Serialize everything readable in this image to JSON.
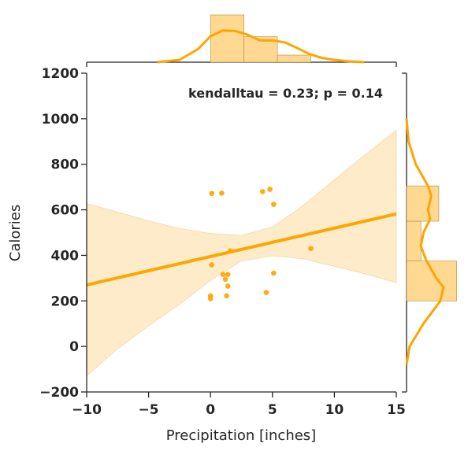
{
  "chart_data": {
    "type": "scatter",
    "xlabel": "Precipitation [inches]",
    "ylabel": "Calories",
    "xlim": [
      -10,
      15
    ],
    "ylim": [
      -200,
      1200
    ],
    "xticks": [
      -10,
      -5,
      0,
      5,
      10,
      15
    ],
    "yticks": [
      -200,
      0,
      200,
      400,
      600,
      800,
      1000,
      1200
    ],
    "xtick_labels": [
      "−10",
      "−5",
      "0",
      "5",
      "10",
      "15"
    ],
    "ytick_labels": [
      "−200",
      "0",
      "200",
      "400",
      "600",
      "800",
      "1000",
      "1200"
    ],
    "annotation": "kendalltau = 0.23; p = 0.14",
    "grid": false,
    "color": "#ffa500",
    "band_color": "#fdebc9",
    "hist_color": "#ffd892",
    "points": [
      {
        "x": 0.1,
        "y": 672
      },
      {
        "x": 0.9,
        "y": 673
      },
      {
        "x": 4.2,
        "y": 680
      },
      {
        "x": 4.8,
        "y": 690
      },
      {
        "x": 5.1,
        "y": 624
      },
      {
        "x": 1.6,
        "y": 420
      },
      {
        "x": 8.1,
        "y": 430
      },
      {
        "x": 0.1,
        "y": 358
      },
      {
        "x": 1.0,
        "y": 316
      },
      {
        "x": 1.4,
        "y": 316
      },
      {
        "x": 1.2,
        "y": 295
      },
      {
        "x": 1.4,
        "y": 265
      },
      {
        "x": 5.1,
        "y": 322
      },
      {
        "x": 4.5,
        "y": 237
      },
      {
        "x": 0.0,
        "y": 222
      },
      {
        "x": 0.0,
        "y": 210
      },
      {
        "x": 1.3,
        "y": 222
      }
    ],
    "regression": {
      "x": [
        -10,
        15
      ],
      "y": [
        270,
        582
      ]
    },
    "confidence_band": {
      "x": [
        -10,
        -7.5,
        -5,
        -2.5,
        0,
        2.5,
        5,
        7.5,
        10,
        12.5,
        15
      ],
      "upper": [
        628,
        590,
        552,
        518,
        496,
        488,
        525,
        620,
        732,
        843,
        950
      ],
      "lower": [
        -130,
        -10,
        90,
        185,
        290,
        375,
        398,
        385,
        352,
        318,
        280
      ]
    },
    "marginal_x": {
      "bins": [
        [
          0,
          2.7
        ],
        [
          2.7,
          5.4
        ],
        [
          5.4,
          8.1
        ]
      ],
      "heights": [
        1.0,
        0.54,
        0.15
      ],
      "kde_x": [
        -4.3,
        -2.5,
        -1,
        0,
        1,
        2,
        3,
        4,
        5,
        6,
        7,
        8,
        9,
        10,
        11,
        12.4
      ],
      "kde_y": [
        0.0,
        0.05,
        0.28,
        0.55,
        0.67,
        0.66,
        0.58,
        0.46,
        0.46,
        0.42,
        0.3,
        0.17,
        0.09,
        0.05,
        0.02,
        0.0
      ]
    },
    "marginal_y": {
      "bins": [
        [
          200,
          375
        ],
        [
          375,
          550
        ],
        [
          550,
          705
        ]
      ],
      "widths": [
        0.98,
        0.28,
        0.63
      ],
      "kde_y": [
        -80,
        0,
        100,
        200,
        260,
        300,
        380,
        440,
        500,
        560,
        600,
        660,
        700,
        800,
        900,
        1000
      ],
      "kde_x": [
        0.0,
        0.06,
        0.33,
        0.66,
        0.72,
        0.58,
        0.38,
        0.28,
        0.33,
        0.46,
        0.42,
        0.48,
        0.43,
        0.18,
        0.04,
        0.0
      ]
    }
  }
}
